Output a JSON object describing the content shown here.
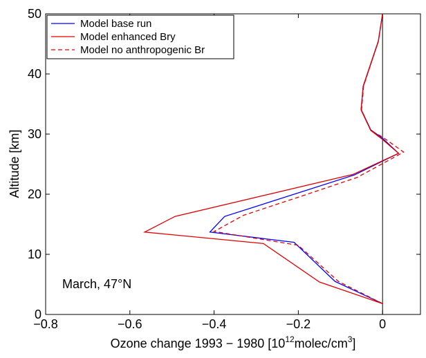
{
  "chart_data": {
    "type": "line",
    "xlabel": [
      "Ozone change 1993 − 1980 [10",
      "12",
      "molec/cm",
      "3",
      "]"
    ],
    "ylabel": "Altitude [km]",
    "annotation": "March, 47°N",
    "xlim": [
      -0.8,
      0.09
    ],
    "ylim": [
      0,
      50
    ],
    "xticks": [
      {
        "value": -0.8,
        "label": "−0.8"
      },
      {
        "value": -0.6,
        "label": "−0.6"
      },
      {
        "value": -0.4,
        "label": "−0.4"
      },
      {
        "value": -0.2,
        "label": "−0.2"
      },
      0
    ],
    "yticks": [
      0,
      10,
      20,
      30,
      40,
      50
    ],
    "legend": "upper left",
    "series": [
      {
        "name": "Model base run",
        "color": "#0000ff",
        "dash": false,
        "x": [
          0,
          -0.113,
          -0.21,
          -0.41,
          -0.375,
          -0.067,
          0.038,
          0,
          -0.028,
          -0.051,
          -0.046,
          -0.01,
          0
        ],
        "y": [
          1.8,
          5.5,
          12,
          13.7,
          16.3,
          23.2,
          26.8,
          29.3,
          30.7,
          34.1,
          37.9,
          45.4,
          50
        ]
      },
      {
        "name": "Model enhanced Bry",
        "color": "#e00000",
        "dash": false,
        "x": [
          0,
          -0.15,
          -0.283,
          -0.565,
          -0.493,
          -0.07,
          0.038,
          0,
          -0.028,
          -0.051,
          -0.046,
          -0.01,
          0
        ],
        "y": [
          1.8,
          5.4,
          11.8,
          13.7,
          16.3,
          23.3,
          26.8,
          29.1,
          30.6,
          34,
          38,
          45.5,
          50
        ]
      },
      {
        "name": "Model no anthropogenic Br",
        "color": "#e00000",
        "dash": true,
        "x": [
          0,
          -0.105,
          -0.2,
          -0.4,
          -0.33,
          -0.2,
          -0.06,
          0.05,
          0,
          -0.028,
          -0.05,
          -0.045,
          -0.01,
          0
        ],
        "y": [
          1.8,
          5.5,
          11.5,
          13.8,
          16.5,
          19.5,
          22.8,
          27,
          29.5,
          30.6,
          34,
          38,
          45.5,
          50
        ]
      }
    ]
  }
}
